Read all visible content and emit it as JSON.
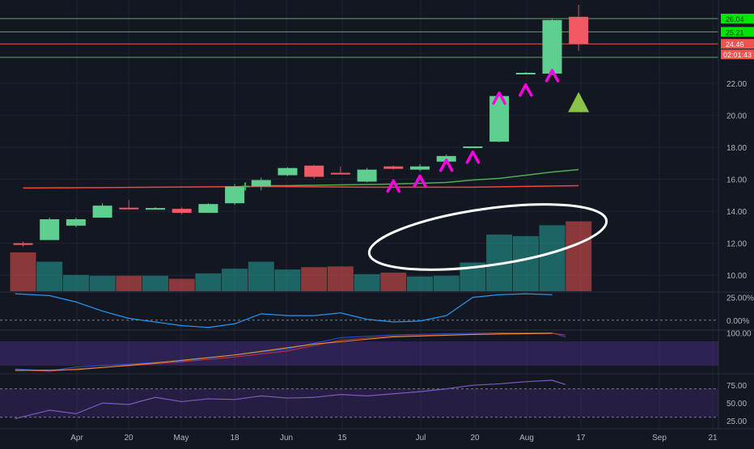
{
  "chart_data": {
    "type": "candlestick",
    "title": "",
    "price_axis": {
      "ticks": [
        "22.00",
        "20.00",
        "18.00",
        "16.00",
        "14.00",
        "12.00",
        "10.00"
      ],
      "ylim": [
        9.0,
        27.2
      ]
    },
    "time_axis": {
      "ticks": [
        "Apr",
        "20",
        "May",
        "18",
        "Jun",
        "15",
        "Jul",
        "20",
        "Aug",
        "17",
        "Sep",
        "21"
      ]
    },
    "candles": [
      {
        "week": 0,
        "open": 12.0,
        "high": 12.1,
        "low": 11.8,
        "close": 11.9
      },
      {
        "week": 1,
        "open": 12.2,
        "high": 13.6,
        "low": 12.2,
        "close": 13.5
      },
      {
        "week": 2,
        "open": 13.1,
        "high": 13.6,
        "low": 13.0,
        "close": 13.5
      },
      {
        "week": 3,
        "open": 13.6,
        "high": 14.5,
        "low": 13.6,
        "close": 14.35
      },
      {
        "week": 4,
        "open": 14.22,
        "high": 14.7,
        "low": 14.1,
        "close": 14.12
      },
      {
        "week": 5,
        "open": 14.17,
        "high": 14.25,
        "low": 14.1,
        "close": 14.2
      },
      {
        "week": 6,
        "open": 14.15,
        "high": 14.25,
        "low": 13.8,
        "close": 13.9
      },
      {
        "week": 7,
        "open": 13.9,
        "high": 14.5,
        "low": 13.9,
        "close": 14.45
      },
      {
        "week": 8,
        "open": 14.5,
        "high": 15.7,
        "low": 14.4,
        "close": 15.55
      },
      {
        "week": 9,
        "open": 15.55,
        "high": 16.1,
        "low": 15.3,
        "close": 15.95
      },
      {
        "week": 10,
        "open": 16.25,
        "high": 16.75,
        "low": 16.2,
        "close": 16.7
      },
      {
        "week": 11,
        "open": 16.85,
        "high": 16.9,
        "low": 16.05,
        "close": 16.15
      },
      {
        "week": 12,
        "open": 16.4,
        "high": 16.8,
        "low": 16.3,
        "close": 16.35
      },
      {
        "week": 13,
        "open": 15.85,
        "high": 16.7,
        "low": 15.8,
        "close": 16.6
      },
      {
        "week": 14,
        "open": 16.8,
        "high": 16.85,
        "low": 16.6,
        "close": 16.65
      },
      {
        "week": 15,
        "open": 16.6,
        "high": 16.95,
        "low": 16.5,
        "close": 16.8
      },
      {
        "week": 16,
        "open": 17.1,
        "high": 17.55,
        "low": 17.0,
        "close": 17.45
      },
      {
        "week": 17,
        "open": 18.0,
        "high": 18.05,
        "low": 17.95,
        "close": 18.05
      },
      {
        "week": 18,
        "open": 18.35,
        "high": 21.25,
        "low": 18.3,
        "close": 21.2
      },
      {
        "week": 19,
        "open": 22.6,
        "high": 22.7,
        "low": 22.6,
        "close": 22.65
      },
      {
        "week": 20,
        "open": 22.6,
        "high": 26.0,
        "low": 22.5,
        "close": 25.95
      },
      {
        "week": 21,
        "open": 26.15,
        "high": 26.9,
        "low": 24.0,
        "close": 24.46
      }
    ],
    "moving_averages": [
      {
        "color": "#4caf50",
        "values": [
          [
            9,
            15.6
          ],
          [
            10,
            15.6
          ],
          [
            12,
            15.65
          ],
          [
            14,
            15.7
          ],
          [
            16,
            15.8
          ],
          [
            17,
            15.95
          ],
          [
            18,
            16.05
          ],
          [
            19,
            16.25
          ],
          [
            20,
            16.45
          ],
          [
            21,
            16.6
          ]
        ]
      },
      {
        "color": "#f44336",
        "values": [
          [
            0,
            15.45
          ],
          [
            5,
            15.5
          ],
          [
            9,
            15.55
          ],
          [
            13,
            15.5
          ],
          [
            17,
            15.5
          ],
          [
            21,
            15.6
          ]
        ]
      }
    ],
    "horizontal_levels": [
      {
        "price": 26.04,
        "color": "#4caf50",
        "label": "26.04"
      },
      {
        "price": 25.21,
        "color": "#4caf50",
        "label": "25.21"
      },
      {
        "price": 24.46,
        "color": "#ef5350",
        "label": "24.46"
      },
      {
        "price": 23.62,
        "color": "#4caf50",
        "label": ""
      }
    ],
    "countdown_label": "02:01:43",
    "arrow_markers": [
      {
        "week": 14,
        "price": 15.6
      },
      {
        "week": 15,
        "price": 15.9
      },
      {
        "week": 16,
        "price": 16.9
      },
      {
        "week": 17,
        "price": 17.4
      },
      {
        "week": 18,
        "price": 21.1
      },
      {
        "week": 19,
        "price": 21.6
      },
      {
        "week": 20,
        "price": 22.5
      }
    ],
    "triangle_marker": {
      "week": 21,
      "price": 20.7,
      "color": "#8bc34a"
    },
    "volume": [
      {
        "week": 0,
        "value": 0.5,
        "up": false
      },
      {
        "week": 1,
        "value": 0.38,
        "up": true
      },
      {
        "week": 2,
        "value": 0.21,
        "up": true
      },
      {
        "week": 3,
        "value": 0.2,
        "up": true
      },
      {
        "week": 4,
        "value": 0.2,
        "up": false
      },
      {
        "week": 5,
        "value": 0.2,
        "up": true
      },
      {
        "week": 6,
        "value": 0.16,
        "up": false
      },
      {
        "week": 7,
        "value": 0.23,
        "up": true
      },
      {
        "week": 8,
        "value": 0.29,
        "up": true
      },
      {
        "week": 9,
        "value": 0.38,
        "up": true
      },
      {
        "week": 10,
        "value": 0.28,
        "up": true
      },
      {
        "week": 11,
        "value": 0.31,
        "up": false
      },
      {
        "week": 12,
        "value": 0.32,
        "up": false
      },
      {
        "week": 13,
        "value": 0.22,
        "up": true
      },
      {
        "week": 14,
        "value": 0.24,
        "up": false
      },
      {
        "week": 15,
        "value": 0.19,
        "up": true
      },
      {
        "week": 16,
        "value": 0.2,
        "up": true
      },
      {
        "week": 17,
        "value": 0.37,
        "up": true
      },
      {
        "week": 18,
        "value": 0.73,
        "up": true
      },
      {
        "week": 19,
        "value": 0.71,
        "up": true
      },
      {
        "week": 20,
        "value": 0.85,
        "up": true
      },
      {
        "week": 21,
        "value": 0.9,
        "up": false
      }
    ],
    "oscillator_1": {
      "ticks": [
        "25.00%",
        "0.00%"
      ],
      "range": [
        -10,
        30
      ],
      "values": [
        [
          -0.3,
          29
        ],
        [
          1,
          27
        ],
        [
          2,
          20
        ],
        [
          3,
          10
        ],
        [
          4,
          2
        ],
        [
          5,
          -2
        ],
        [
          6,
          -6
        ],
        [
          7,
          -8
        ],
        [
          8,
          -4
        ],
        [
          9,
          7
        ],
        [
          10,
          5
        ],
        [
          11,
          5
        ],
        [
          12,
          8
        ],
        [
          13,
          1
        ],
        [
          14,
          -2
        ],
        [
          15,
          -1
        ],
        [
          16,
          5
        ],
        [
          17,
          25
        ],
        [
          18,
          28
        ],
        [
          19,
          29
        ],
        [
          20,
          28
        ]
      ],
      "dashed_level": 0
    },
    "oscillator_2": {
      "ticks": [
        "100.00"
      ],
      "range": [
        0,
        105
      ],
      "lines": [
        {
          "color": "#2962ff",
          "values": [
            [
              -0.3,
              10
            ],
            [
              1,
              5
            ],
            [
              2,
              15
            ],
            [
              4,
              22
            ],
            [
              6,
              30
            ],
            [
              8,
              45
            ],
            [
              10,
              60
            ],
            [
              12,
              88
            ],
            [
              14,
              95
            ],
            [
              16,
              98
            ],
            [
              18,
              100
            ],
            [
              20,
              100
            ],
            [
              20.5,
              90
            ]
          ]
        },
        {
          "color": "#e53935",
          "values": [
            [
              -0.3,
              8
            ],
            [
              1,
              4
            ],
            [
              2,
              10
            ],
            [
              4,
              18
            ],
            [
              6,
              28
            ],
            [
              8,
              40
            ],
            [
              10,
              55
            ],
            [
              12,
              82
            ],
            [
              14,
              92
            ],
            [
              16,
              95
            ],
            [
              18,
              98
            ],
            [
              20,
              99
            ],
            [
              20.5,
              95
            ]
          ]
        },
        {
          "color": "#ffa726",
          "values": [
            [
              -0.3,
              6
            ],
            [
              2,
              8
            ],
            [
              5,
              25
            ],
            [
              8,
              45
            ],
            [
              11,
              72
            ],
            [
              14,
              90
            ],
            [
              17,
              96
            ],
            [
              20,
              99
            ]
          ]
        }
      ]
    },
    "oscillator_3": {
      "ticks": [
        "75.00",
        "50.00",
        "25.00"
      ],
      "range": [
        15,
        90
      ],
      "values": [
        [
          -0.3,
          28
        ],
        [
          1,
          40
        ],
        [
          2,
          35
        ],
        [
          3,
          50
        ],
        [
          4,
          48
        ],
        [
          5,
          58
        ],
        [
          6,
          52
        ],
        [
          7,
          56
        ],
        [
          8,
          55
        ],
        [
          9,
          60
        ],
        [
          10,
          57
        ],
        [
          11,
          58
        ],
        [
          12,
          62
        ],
        [
          13,
          60
        ],
        [
          14,
          63
        ],
        [
          15,
          66
        ],
        [
          16,
          70
        ],
        [
          17,
          75
        ],
        [
          18,
          77
        ],
        [
          19,
          80
        ],
        [
          20,
          82
        ],
        [
          20.5,
          76
        ]
      ],
      "levels": [
        70,
        30
      ]
    }
  }
}
